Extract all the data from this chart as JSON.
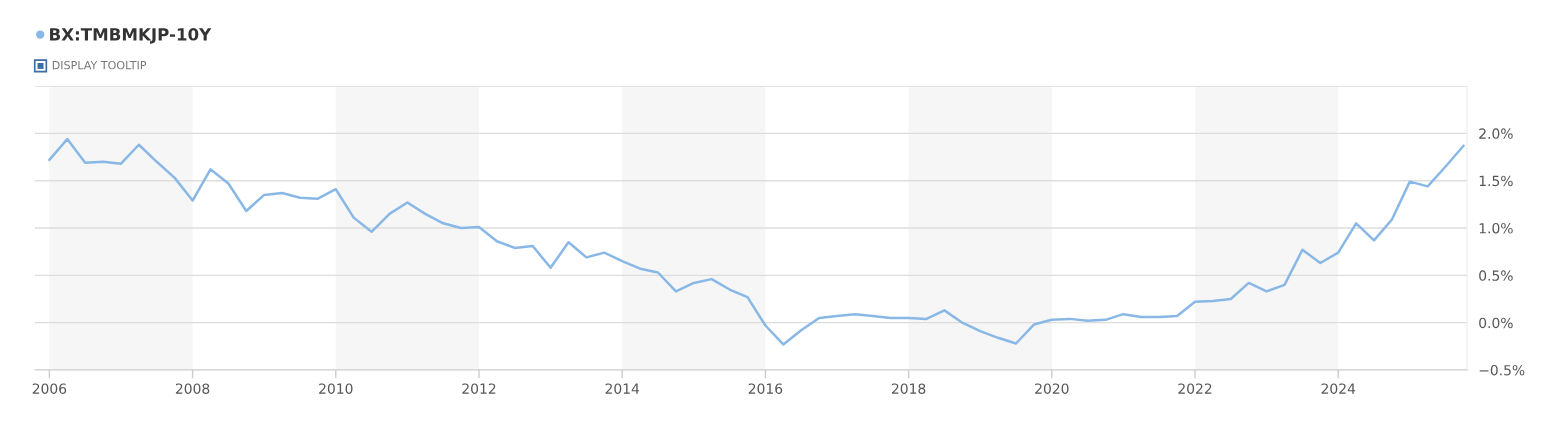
{
  "chart_data": {
    "type": "line",
    "x": [
      2006,
      2006.25,
      2006.5,
      2006.75,
      2007,
      2007.25,
      2007.5,
      2007.75,
      2008,
      2008.25,
      2008.5,
      2008.75,
      2009,
      2009.25,
      2009.5,
      2009.75,
      2010,
      2010.25,
      2010.5,
      2010.75,
      2011,
      2011.25,
      2011.5,
      2011.75,
      2012,
      2012.25,
      2012.5,
      2012.75,
      2013,
      2013.25,
      2013.5,
      2013.75,
      2014,
      2014.25,
      2014.5,
      2014.75,
      2015,
      2015.25,
      2015.5,
      2015.75,
      2016,
      2016.25,
      2016.5,
      2016.75,
      2017,
      2017.25,
      2017.5,
      2017.75,
      2018,
      2018.25,
      2018.5,
      2018.75,
      2019,
      2019.25,
      2019.5,
      2019.75,
      2020,
      2020.25,
      2020.5,
      2020.75,
      2021,
      2021.25,
      2021.5,
      2021.75,
      2022,
      2022.25,
      2022.5,
      2022.75,
      2023,
      2023.25,
      2023.5,
      2023.75,
      2024,
      2024.25,
      2024.5,
      2024.75,
      2025,
      2025.25,
      2025.5,
      2025.75
    ],
    "series": [
      {
        "name": "BX:TMBMKJP-10Y",
        "color": "#8ab8e6",
        "values": [
          1.72,
          1.94,
          1.69,
          1.7,
          1.68,
          1.88,
          1.7,
          1.53,
          1.29,
          1.62,
          1.47,
          1.18,
          1.35,
          1.37,
          1.32,
          1.31,
          1.41,
          1.11,
          0.96,
          1.15,
          1.27,
          1.15,
          1.05,
          1.0,
          1.01,
          0.86,
          0.79,
          0.81,
          0.58,
          0.85,
          0.69,
          0.74,
          0.65,
          0.57,
          0.53,
          0.33,
          0.42,
          0.46,
          0.35,
          0.27,
          -0.03,
          -0.23,
          -0.08,
          0.05,
          0.07,
          0.09,
          0.07,
          0.05,
          0.05,
          0.04,
          0.13,
          0.0,
          -0.09,
          -0.16,
          -0.22,
          -0.02,
          0.03,
          0.04,
          0.02,
          0.03,
          0.09,
          0.06,
          0.06,
          0.07,
          0.22,
          0.23,
          0.25,
          0.42,
          0.33,
          0.4,
          0.77,
          0.63,
          0.74,
          1.05,
          0.87,
          1.09,
          1.49,
          1.44,
          1.65,
          1.87
        ]
      }
    ],
    "xlim": [
      2005.8,
      2025.8
    ],
    "xticks": [
      2006,
      2008,
      2010,
      2012,
      2014,
      2016,
      2018,
      2020,
      2022,
      2024
    ],
    "ylim": [
      -0.5,
      2.5
    ],
    "yticks": [
      {
        "value": -0.5,
        "label": "−0.5%"
      },
      {
        "value": 0,
        "label": "0.0%"
      },
      {
        "value": 0.5,
        "label": "0.5%"
      },
      {
        "value": 1,
        "label": "1.0%"
      },
      {
        "value": 1.5,
        "label": "1.5%"
      },
      {
        "value": 2,
        "label": "2.0%"
      },
      {
        "value": 2.5,
        "label": null
      }
    ],
    "bands": [
      {
        "axis": "x",
        "from": 2006,
        "to": 2008,
        "color": "#f6f6f6"
      },
      {
        "axis": "x",
        "from": 2010,
        "to": 2012,
        "color": "#f6f6f6"
      },
      {
        "axis": "x",
        "from": 2014,
        "to": 2016,
        "color": "#f6f6f6"
      },
      {
        "axis": "x",
        "from": 2018,
        "to": 2020,
        "color": "#f6f6f6"
      },
      {
        "axis": "x",
        "from": 2022,
        "to": 2024,
        "color": "#f6f6f6"
      }
    ],
    "annotations": [
      "DISPLAY TOOLTIP"
    ],
    "grid": "y",
    "legend": "top left",
    "marker": "none",
    "line_style": "solid"
  }
}
